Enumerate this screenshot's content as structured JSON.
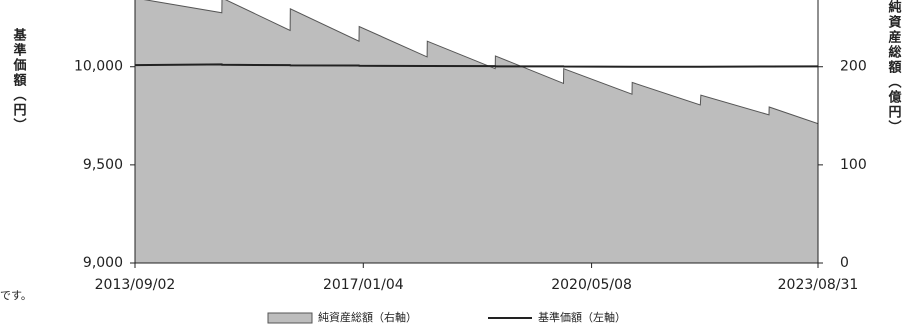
{
  "chart_data": {
    "type": "area-line",
    "y_label": "基準価額（円）",
    "y2_label": "純資産総額（億円）",
    "annotations": [
      "です。"
    ],
    "x": [
      "2013/09/02",
      "2014/12/10",
      "2014/12/11",
      "2015/12/10",
      "2015/12/11",
      "2016/12/12",
      "2016/12/13",
      "2017/12/11",
      "2017/12/12",
      "2018/12/10",
      "2018/12/11",
      "2019/12/10",
      "2019/12/11",
      "2020/12/10",
      "2020/12/11",
      "2021/12/10",
      "2021/12/13",
      "2022/12/12",
      "2022/12/13",
      "2023/08/31"
    ],
    "series": [
      {
        "name": "純資産総額（右軸）",
        "color": "#bdbdbd",
        "axis": "y2",
        "values": [
          270,
          255,
          270,
          237,
          259,
          226,
          241,
          210,
          226,
          198,
          211,
          183,
          198,
          172,
          184,
          161,
          171,
          151,
          159,
          142
        ]
      },
      {
        "name": "基準価額（左軸）",
        "color": "#222222",
        "values": [
          10008,
          10012,
          10010,
          10008,
          10007,
          10006,
          10005,
          10004,
          10004,
          10003,
          10002,
          10002,
          10001,
          10000,
          10000,
          10000,
          10000,
          10001,
          10001,
          10002
        ]
      }
    ],
    "xlim": [
      "2013/09/02",
      "2023/08/31"
    ],
    "xticks": [
      "2013/09/02",
      "2017/01/04",
      "2020/05/08",
      "2023/08/31"
    ],
    "ylim": [
      9000,
      10340
    ],
    "yticks": [
      {
        "value": 9000,
        "label": "9,000"
      },
      {
        "value": 9500,
        "label": "9,500"
      },
      {
        "value": 10000,
        "label": "10,000"
      }
    ],
    "y2lim": [
      0,
      268
    ],
    "y2ticks": [
      0,
      100,
      200
    ]
  }
}
